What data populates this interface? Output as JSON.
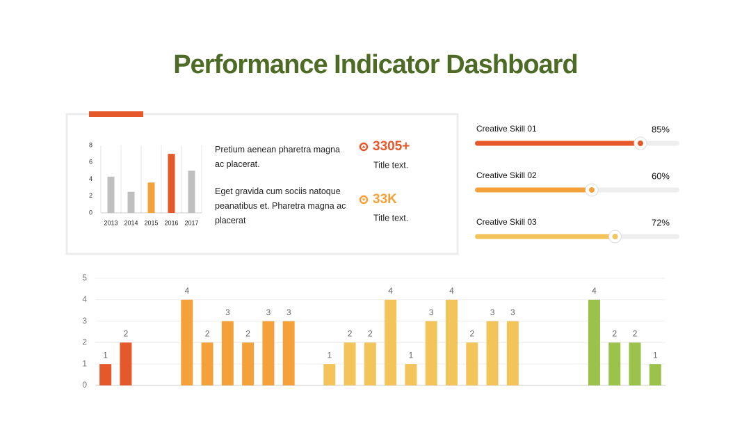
{
  "title": "Performance Indicator Dashboard",
  "paragraphs": [
    "Pretium aenean pharetra magna ac placerat.",
    "Eget gravida cum sociis natoque peanatibus et. Pharetra magna ac placerat"
  ],
  "stats": [
    {
      "value": "3305+",
      "label": "Title text."
    },
    {
      "value": "33K",
      "label": "Title text."
    }
  ],
  "chart_data": [
    {
      "type": "bar",
      "categories": [
        "2013",
        "2014",
        "2015",
        "2016",
        "2017"
      ],
      "values": [
        4.3,
        2.5,
        3.6,
        7,
        5
      ],
      "colors": [
        "#bfbfbf",
        "#bfbfbf",
        "#f5a13a",
        "#e5582a",
        "#bfbfbf"
      ],
      "ylim": [
        0,
        8
      ],
      "yticks": [
        0,
        2,
        4,
        6,
        8
      ]
    },
    {
      "type": "progress",
      "categories": [
        "Creative Skill  01",
        "Creative Skill  02",
        "Creative Skill  03"
      ],
      "values": [
        85,
        60,
        72
      ],
      "value_labels": [
        "85%",
        "60%",
        "72%"
      ],
      "colors": [
        "#e5582a",
        "#f5a13a",
        "#f2c45a"
      ],
      "xlim": [
        0,
        100
      ]
    },
    {
      "type": "bar",
      "ylim": [
        0,
        5
      ],
      "yticks": [
        0,
        1,
        2,
        3,
        4,
        5
      ],
      "grid": true,
      "data_labels": true,
      "series": [
        {
          "color": "#e5582a",
          "values": [
            1,
            2,
            null,
            null,
            null,
            null,
            null,
            null,
            null,
            null,
            null,
            null,
            null,
            null,
            null,
            null,
            null,
            null,
            null,
            null,
            null,
            null,
            null,
            null,
            null,
            null,
            null,
            null
          ]
        },
        {
          "color": "#f5a13a",
          "values": [
            null,
            null,
            null,
            null,
            4,
            2,
            3,
            2,
            3,
            3,
            null,
            null,
            null,
            null,
            null,
            null,
            null,
            null,
            null,
            null,
            null,
            null,
            null,
            null,
            null,
            null,
            null,
            null
          ]
        },
        {
          "color": "#f2c45a",
          "values": [
            null,
            null,
            null,
            null,
            null,
            null,
            null,
            null,
            null,
            null,
            null,
            1,
            2,
            2,
            4,
            1,
            3,
            4,
            2,
            3,
            3,
            null,
            null,
            null,
            null,
            null,
            null,
            null
          ]
        },
        {
          "color": "#9bc24b",
          "values": [
            null,
            null,
            null,
            null,
            null,
            null,
            null,
            null,
            null,
            null,
            null,
            null,
            null,
            null,
            null,
            null,
            null,
            null,
            null,
            null,
            null,
            null,
            null,
            null,
            4,
            2,
            2,
            1
          ]
        }
      ]
    }
  ]
}
